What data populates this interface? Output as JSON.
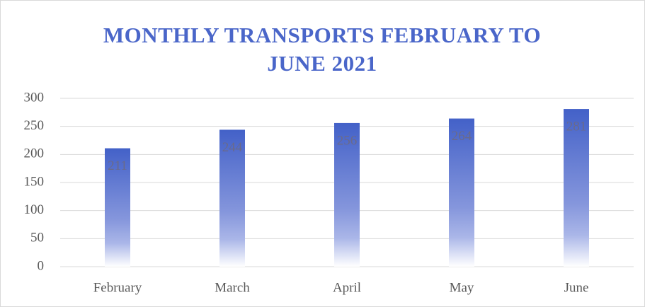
{
  "chart_data": {
    "type": "bar",
    "title": "MONTHLY TRANSPORTS FEBRUARY TO JUNE 2021",
    "categories": [
      "February",
      "March",
      "April",
      "May",
      "June"
    ],
    "values": [
      211,
      244,
      256,
      264,
      281
    ],
    "color": "#4a66c9",
    "ylim": [
      0,
      300
    ],
    "yticks": [
      0,
      50,
      100,
      150,
      200,
      250,
      300
    ],
    "grid": true
  }
}
